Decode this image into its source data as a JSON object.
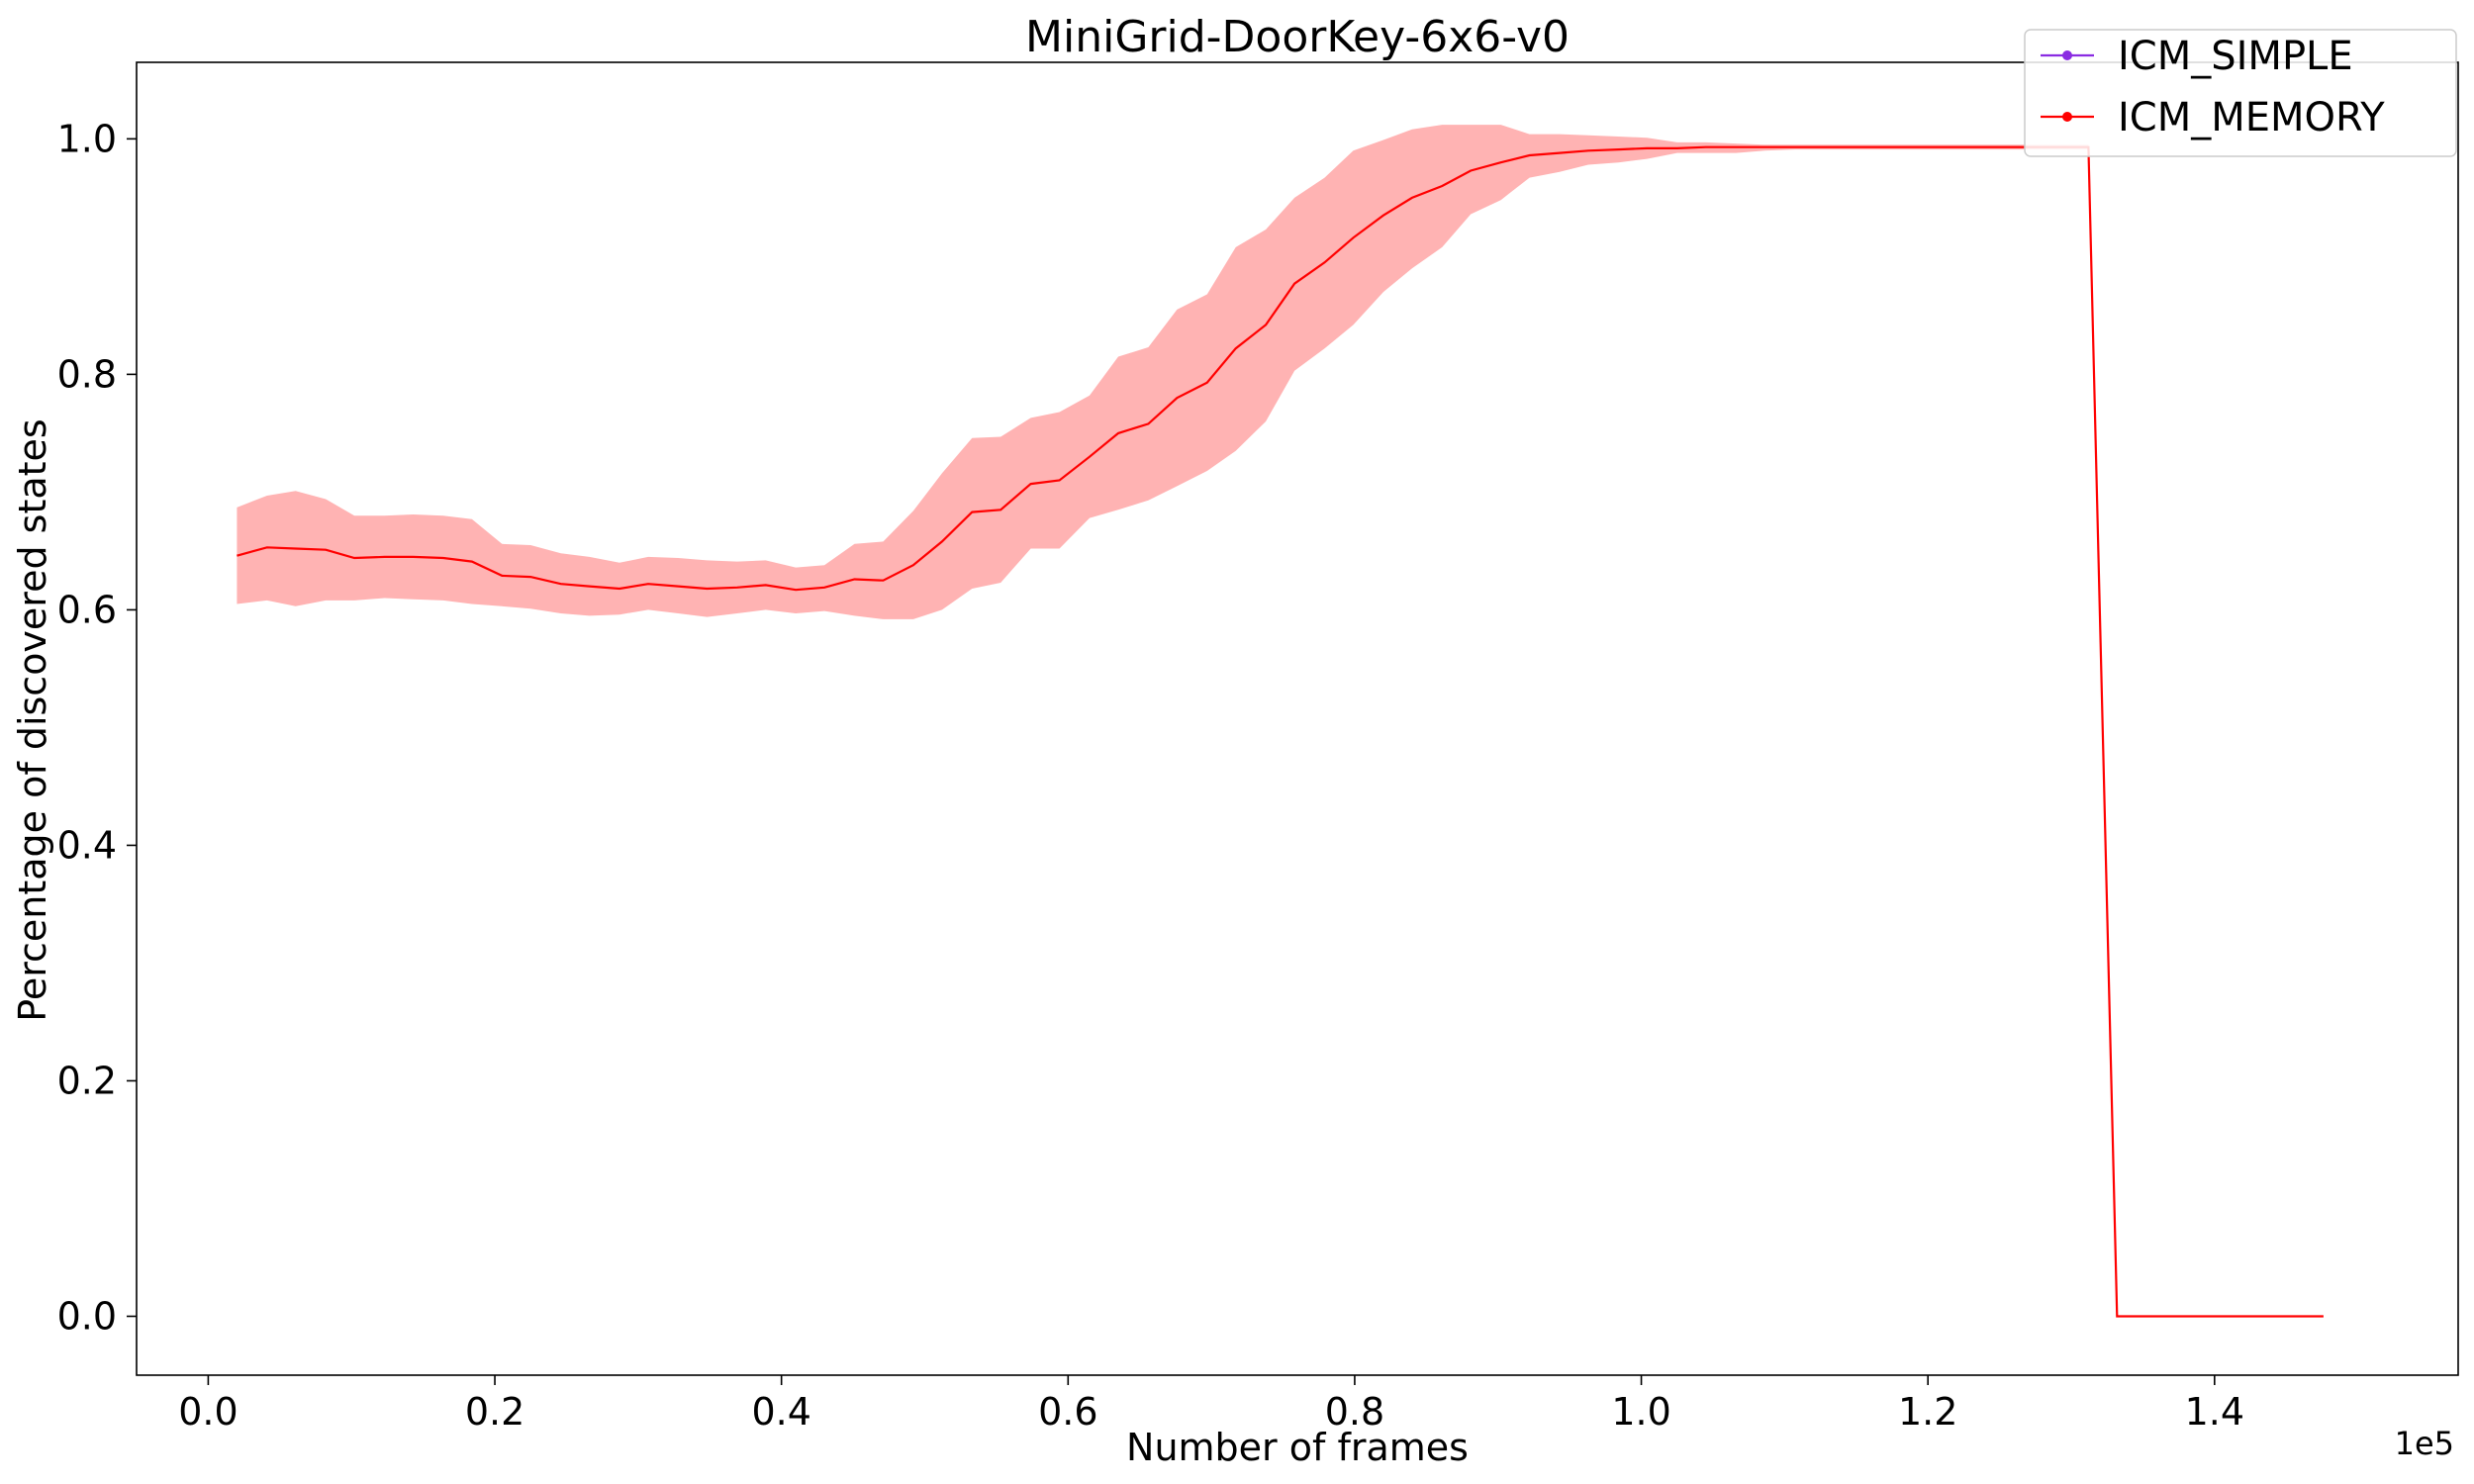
{
  "chart_data": {
    "type": "line",
    "title": "MiniGrid-DoorKey-6x6-v0",
    "xlabel": "Number of frames",
    "ylabel": "Percentage of discovered states",
    "x_offset_label": "1e5",
    "xlim": [
      -0.05,
      1.57
    ],
    "ylim": [
      -0.05,
      1.065
    ],
    "xticks": [
      0.0,
      0.2,
      0.4,
      0.6,
      0.8,
      1.0,
      1.2,
      1.4
    ],
    "xtick_labels": [
      "0.0",
      "0.2",
      "0.4",
      "0.6",
      "0.8",
      "1.0",
      "1.2",
      "1.4"
    ],
    "yticks": [
      0.0,
      0.2,
      0.4,
      0.6,
      0.8,
      1.0
    ],
    "ytick_labels": [
      "0.0",
      "0.2",
      "0.4",
      "0.6",
      "0.8",
      "1.0"
    ],
    "grid": false,
    "legend_position": "top-right",
    "series": [
      {
        "name": "ICM_SIMPLE",
        "color": "#8a2be2",
        "x": [],
        "y": []
      },
      {
        "name": "ICM_MEMORY",
        "color": "#ff0000",
        "band_color": "#ffb3b3",
        "x": [
          0.02,
          0.041,
          0.061,
          0.082,
          0.102,
          0.123,
          0.143,
          0.164,
          0.184,
          0.205,
          0.225,
          0.246,
          0.266,
          0.287,
          0.307,
          0.328,
          0.348,
          0.369,
          0.389,
          0.41,
          0.43,
          0.451,
          0.471,
          0.492,
          0.512,
          0.533,
          0.553,
          0.574,
          0.594,
          0.615,
          0.635,
          0.656,
          0.676,
          0.697,
          0.717,
          0.738,
          0.758,
          0.779,
          0.799,
          0.82,
          0.84,
          0.861,
          0.881,
          0.902,
          0.922,
          0.943,
          0.963,
          0.984,
          1.004,
          1.025,
          1.045,
          1.066,
          1.086,
          1.107,
          1.127,
          1.148,
          1.168,
          1.189,
          1.209,
          1.23,
          1.25,
          1.271,
          1.291,
          1.312,
          1.332,
          1.353,
          1.373,
          1.394,
          1.414,
          1.435,
          1.455,
          1.476
        ],
        "y": [
          0.646,
          0.653,
          0.652,
          0.651,
          0.644,
          0.645,
          0.645,
          0.644,
          0.641,
          0.629,
          0.628,
          0.622,
          0.62,
          0.618,
          0.622,
          0.62,
          0.618,
          0.619,
          0.621,
          0.617,
          0.619,
          0.626,
          0.625,
          0.638,
          0.658,
          0.683,
          0.685,
          0.707,
          0.71,
          0.73,
          0.75,
          0.758,
          0.78,
          0.793,
          0.822,
          0.842,
          0.877,
          0.895,
          0.916,
          0.935,
          0.95,
          0.96,
          0.973,
          0.98,
          0.986,
          0.988,
          0.99,
          0.991,
          0.992,
          0.992,
          0.993,
          0.993,
          0.993,
          0.993,
          0.993,
          0.993,
          0.993,
          0.993,
          0.993,
          0.993,
          0.993,
          0.993,
          0.993,
          0.993,
          0.0,
          0.0,
          0.0,
          0.0,
          0.0,
          0.0,
          0.0,
          0.0
        ],
        "y_lower": [
          0.605,
          0.608,
          0.603,
          0.608,
          0.608,
          0.61,
          0.609,
          0.608,
          0.605,
          0.603,
          0.601,
          0.597,
          0.595,
          0.596,
          0.6,
          0.597,
          0.594,
          0.597,
          0.6,
          0.597,
          0.599,
          0.595,
          0.592,
          0.592,
          0.6,
          0.618,
          0.623,
          0.652,
          0.652,
          0.678,
          0.685,
          0.693,
          0.705,
          0.718,
          0.735,
          0.76,
          0.803,
          0.822,
          0.842,
          0.87,
          0.89,
          0.908,
          0.936,
          0.948,
          0.967,
          0.972,
          0.978,
          0.98,
          0.983,
          0.988,
          0.988,
          0.988,
          0.99,
          0.991,
          0.991,
          0.991,
          0.991,
          0.991,
          0.991,
          0.991,
          0.991,
          0.991,
          0.991,
          0.991,
          0.0,
          0.0,
          0.0,
          0.0,
          0.0,
          0.0,
          0.0,
          0.0
        ],
        "y_upper": [
          0.687,
          0.697,
          0.701,
          0.694,
          0.68,
          0.68,
          0.681,
          0.68,
          0.677,
          0.656,
          0.655,
          0.648,
          0.645,
          0.64,
          0.645,
          0.644,
          0.642,
          0.641,
          0.642,
          0.636,
          0.638,
          0.656,
          0.658,
          0.684,
          0.716,
          0.746,
          0.747,
          0.763,
          0.768,
          0.782,
          0.815,
          0.823,
          0.855,
          0.868,
          0.908,
          0.923,
          0.95,
          0.967,
          0.99,
          0.999,
          1.008,
          1.012,
          1.012,
          1.012,
          1.004,
          1.004,
          1.003,
          1.002,
          1.001,
          0.997,
          0.997,
          0.996,
          0.995,
          0.995,
          0.995,
          0.995,
          0.995,
          0.995,
          0.995,
          0.995,
          0.995,
          0.995,
          0.995,
          0.995,
          0.0,
          0.0,
          0.0,
          0.0,
          0.0,
          0.0,
          0.0,
          0.0
        ]
      }
    ]
  }
}
